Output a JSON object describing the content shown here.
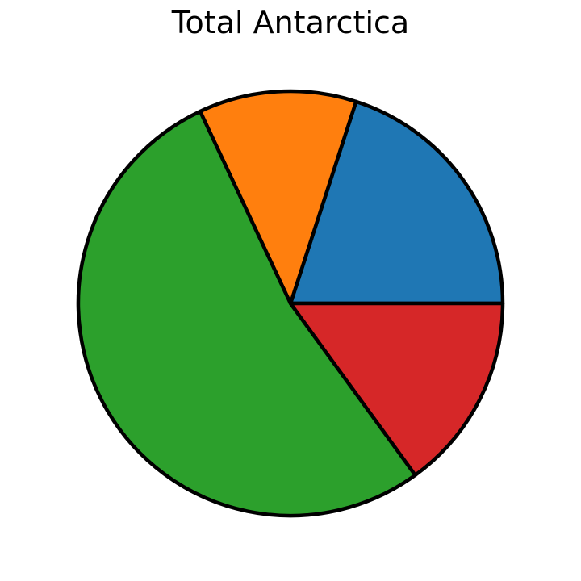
{
  "chart_data": {
    "type": "pie",
    "title": "Total Antarctica",
    "start_angle_deg": 0,
    "direction": "counterclockwise",
    "slices": [
      {
        "value": 20,
        "color": "#1f77b4"
      },
      {
        "value": 12,
        "color": "#ff7f0e"
      },
      {
        "value": 53,
        "color": "#2ca02c"
      },
      {
        "value": 15,
        "color": "#d62728"
      }
    ],
    "edge_color": "#000000"
  }
}
